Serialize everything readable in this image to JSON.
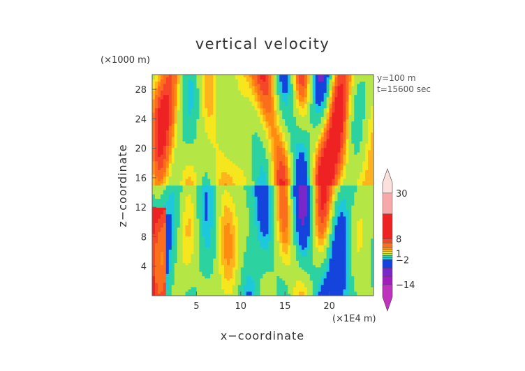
{
  "chart_data": {
    "type": "heatmap",
    "title": "vertical velocity",
    "xlabel": "x−coordinate",
    "ylabel": "z−coordinate",
    "x_unit_label": "(×1E4 m)",
    "y_unit_label": "(×1000 m)",
    "annotations": [
      "y=100 m",
      "t=15600 sec"
    ],
    "xlim": [
      0,
      25
    ],
    "ylim": [
      0,
      30
    ],
    "x_ticks": [
      {
        "value": 5,
        "label": "5"
      },
      {
        "value": 10,
        "label": "10"
      },
      {
        "value": 15,
        "label": "15"
      },
      {
        "value": 20,
        "label": "20"
      }
    ],
    "y_ticks": [
      {
        "value": 4,
        "label": "4"
      },
      {
        "value": 8,
        "label": "8"
      },
      {
        "value": 12,
        "label": "12"
      },
      {
        "value": 16,
        "label": "16"
      },
      {
        "value": 20,
        "label": "20"
      },
      {
        "value": 24,
        "label": "24"
      },
      {
        "value": 28,
        "label": "28"
      }
    ],
    "colorbar": {
      "range": [
        -20,
        35
      ],
      "labels": [
        {
          "value": 30,
          "label": "30"
        },
        {
          "value": 8,
          "label": "8"
        },
        {
          "value": 1,
          "label": "1"
        },
        {
          "value": -2,
          "label": "−2"
        },
        {
          "value": -14,
          "label": "−14"
        }
      ],
      "levels": [
        {
          "min": 30,
          "max": 35,
          "color": "#fbe0dc"
        },
        {
          "min": 20,
          "max": 30,
          "color": "#f7a9a9"
        },
        {
          "min": 8,
          "max": 20,
          "color": "#ee2222"
        },
        {
          "min": 6,
          "max": 8,
          "color": "#f5462a"
        },
        {
          "min": 4,
          "max": 6,
          "color": "#fa6e1e"
        },
        {
          "min": 3,
          "max": 4,
          "color": "#ff8c10"
        },
        {
          "min": 2,
          "max": 3,
          "color": "#ffb41e"
        },
        {
          "min": 1,
          "max": 2,
          "color": "#f5e61e"
        },
        {
          "min": 0,
          "max": 1,
          "color": "#b4e646"
        },
        {
          "min": -1,
          "max": 0,
          "color": "#2cd2a0"
        },
        {
          "min": -2,
          "max": -1,
          "color": "#1ec8dc"
        },
        {
          "min": -6,
          "max": -2,
          "color": "#1444dc"
        },
        {
          "min": -10,
          "max": -6,
          "color": "#7828c8"
        },
        {
          "min": -14,
          "max": -10,
          "color": "#a01ebe"
        },
        {
          "min": -20,
          "max": -14,
          "color": "#be32be"
        }
      ]
    }
  }
}
